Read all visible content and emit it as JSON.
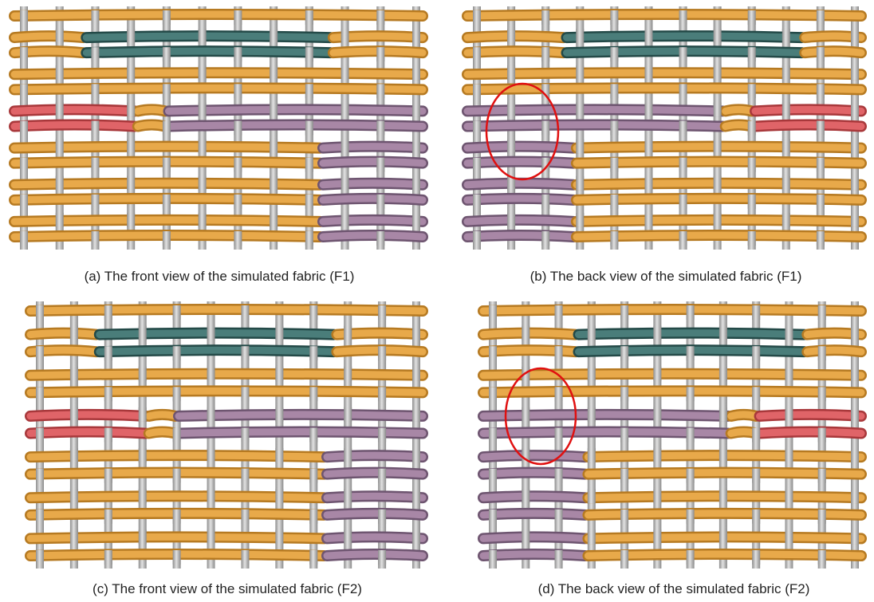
{
  "panels": [
    {
      "caption": "(a) The front view of the simulated fabric (F1)"
    },
    {
      "caption": "(b) The back view of the simulated fabric (F1)"
    },
    {
      "caption": "(c) The front view of the simulated fabric (F2)"
    },
    {
      "caption": "(d) The back view of the simulated fabric (F2)"
    }
  ]
}
